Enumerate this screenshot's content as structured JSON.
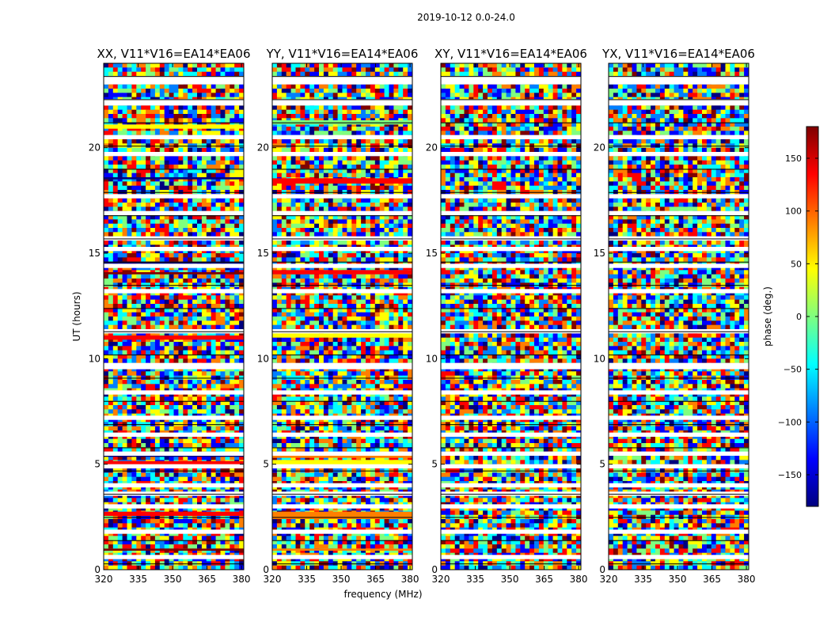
{
  "suptitle": "2019-10-12 0.0-24.0",
  "xlabel": "frequency (MHz)",
  "ylabel": "UT (hours)",
  "colorbar": {
    "label": "phase (deg.)",
    "ticks": [
      150,
      100,
      50,
      0,
      -50,
      -100,
      -150
    ],
    "tick_labels": [
      "150",
      "100",
      "50",
      "0",
      "−50",
      "−100",
      "−150"
    ],
    "range": [
      -180,
      180
    ],
    "colormap": [
      "#00007f",
      "#0000ff",
      "#007fff",
      "#00ffff",
      "#7fff7f",
      "#ffff00",
      "#ff7f00",
      "#ff0000",
      "#7f0000"
    ]
  },
  "chart_data": {
    "type": "heatmap",
    "title": "2019-10-12 0.0-24.0",
    "xlabel": "frequency (MHz)",
    "ylabel": "UT (hours)",
    "xlim": [
      320,
      381
    ],
    "ylim": [
      0,
      24
    ],
    "x_ticks": [
      320,
      335,
      350,
      365,
      380
    ],
    "y_ticks": [
      0,
      5,
      10,
      15,
      20
    ],
    "value_label": "phase (deg.)",
    "value_range": [
      -180,
      180
    ],
    "panels": [
      {
        "title": "XX, V11*V16=EA14*EA06"
      },
      {
        "title": "YY, V11*V16=EA14*EA06"
      },
      {
        "title": "XY, V11*V16=EA14*EA06"
      },
      {
        "title": "YX, V11*V16=EA14*EA06"
      }
    ],
    "flagged_time_ranges_hours": [
      [
        23.0,
        23.4
      ],
      [
        22.0,
        22.3
      ],
      [
        20.4,
        20.6
      ],
      [
        19.6,
        19.8
      ],
      [
        17.6,
        17.8
      ],
      [
        16.8,
        17.0
      ],
      [
        15.6,
        15.8
      ],
      [
        15.1,
        15.3
      ],
      [
        14.3,
        14.5
      ],
      [
        13.1,
        13.3
      ],
      [
        11.2,
        11.4
      ],
      [
        9.5,
        9.8
      ],
      [
        8.3,
        8.5
      ],
      [
        7.1,
        7.3
      ],
      [
        6.3,
        6.5
      ],
      [
        5.4,
        5.6
      ],
      [
        4.8,
        5.0
      ],
      [
        3.9,
        4.1
      ],
      [
        3.5,
        3.7
      ],
      [
        2.9,
        3.1
      ],
      [
        1.7,
        1.9
      ],
      [
        0.5,
        0.7
      ]
    ],
    "band_phase_deg": {
      "XX": [
        [
          0.9,
          1.0,
          160
        ],
        [
          2.55,
          2.75,
          150
        ],
        [
          4.95,
          5.15,
          140
        ],
        [
          5.35,
          5.45,
          -170
        ],
        [
          10.9,
          11.1,
          130
        ],
        [
          14.0,
          14.1,
          160
        ],
        [
          14.5,
          14.6,
          -170
        ],
        [
          18.5,
          18.6,
          -170
        ],
        [
          20.9,
          21.1,
          40
        ]
      ],
      "YY": [
        [
          0.9,
          1.0,
          90
        ],
        [
          2.4,
          2.75,
          70
        ],
        [
          4.95,
          5.2,
          50
        ],
        [
          5.3,
          5.45,
          90
        ],
        [
          11.0,
          11.2,
          60
        ],
        [
          14.0,
          14.2,
          150
        ],
        [
          18.3,
          18.55,
          150
        ],
        [
          21.1,
          21.3,
          -10
        ]
      ],
      "XY": [],
      "YX": []
    }
  }
}
